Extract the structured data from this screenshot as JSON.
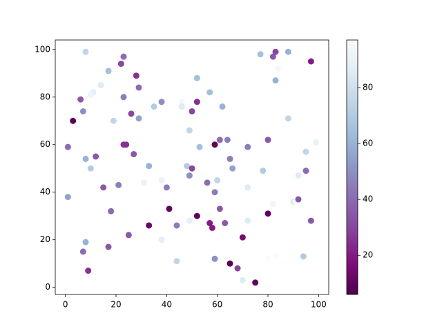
{
  "chart_data": {
    "type": "scatter",
    "x": [
      8,
      23,
      22,
      17,
      28,
      14,
      11,
      10,
      29,
      6,
      23,
      38,
      35,
      46,
      46,
      52,
      57,
      52,
      50,
      62,
      7,
      26,
      29,
      19,
      3,
      49,
      53,
      59,
      61,
      64,
      72,
      1,
      23,
      24,
      27,
      12,
      8,
      65,
      66,
      48,
      50,
      49,
      33,
      10,
      21,
      15,
      31,
      38,
      40,
      56,
      60,
      59,
      72,
      78,
      77,
      83,
      82,
      88,
      84,
      83,
      88,
      80,
      95,
      99,
      92,
      95,
      82,
      90,
      91,
      92,
      97,
      97,
      1,
      18,
      41,
      61,
      52,
      49,
      57,
      58,
      63,
      72,
      80,
      33,
      44,
      25,
      38,
      70,
      8,
      17,
      7,
      44,
      59,
      65,
      9,
      68,
      70,
      75,
      83,
      94,
      80
    ],
    "y": [
      99,
      97,
      94,
      91,
      89,
      85,
      82,
      81,
      84,
      79,
      80,
      78,
      76,
      78,
      76,
      88,
      82,
      78,
      74,
      76,
      74,
      73,
      71,
      70,
      70,
      66,
      59,
      60,
      62,
      62,
      59,
      59,
      60,
      60,
      56,
      55,
      54,
      54,
      50,
      51,
      50,
      47,
      51,
      50,
      43,
      42,
      44,
      45,
      42,
      44,
      45,
      40,
      42,
      49,
      98,
      99,
      97,
      99,
      92,
      87,
      71,
      62,
      57,
      61,
      47,
      49,
      35,
      36,
      36,
      37,
      28,
      95,
      38,
      32,
      33,
      33,
      30,
      28,
      27,
      25,
      27,
      28,
      31,
      26,
      26,
      22,
      20,
      21,
      19,
      17,
      15,
      11,
      12,
      10,
      7,
      8,
      3,
      2,
      13,
      13,
      12
    ],
    "c": [
      75,
      40,
      30,
      65,
      25,
      85,
      88,
      92,
      40,
      35,
      45,
      50,
      70,
      95,
      85,
      65,
      65,
      25,
      30,
      60,
      50,
      30,
      55,
      75,
      8,
      75,
      65,
      10,
      40,
      45,
      45,
      40,
      25,
      25,
      35,
      35,
      60,
      45,
      55,
      70,
      30,
      50,
      60,
      70,
      45,
      35,
      90,
      90,
      45,
      40,
      75,
      45,
      85,
      70,
      65,
      30,
      35,
      60,
      95,
      60,
      75,
      35,
      75,
      90,
      85,
      40,
      93,
      85,
      95,
      35,
      35,
      20,
      55,
      40,
      10,
      35,
      10,
      88,
      20,
      20,
      35,
      85,
      10,
      12,
      45,
      35,
      88,
      15,
      60,
      35,
      40,
      75,
      50,
      8,
      25,
      30,
      85,
      10,
      97,
      70,
      97
    ],
    "colormap": [
      "#4d004b",
      "#810f7c",
      "#88419d",
      "#8c6bb1",
      "#8c96c6",
      "#9ebcda",
      "#bfd3e6",
      "#e0ecf4",
      "#f7fcfd"
    ],
    "clim": [
      6,
      97
    ],
    "cticks": [
      20,
      40,
      60,
      80
    ],
    "xlim": [
      -4,
      104
    ],
    "xticks": [
      0,
      20,
      40,
      60,
      80,
      100
    ],
    "ylim": [
      -3,
      104
    ],
    "yticks": [
      0,
      20,
      40,
      60,
      80,
      100
    ]
  }
}
